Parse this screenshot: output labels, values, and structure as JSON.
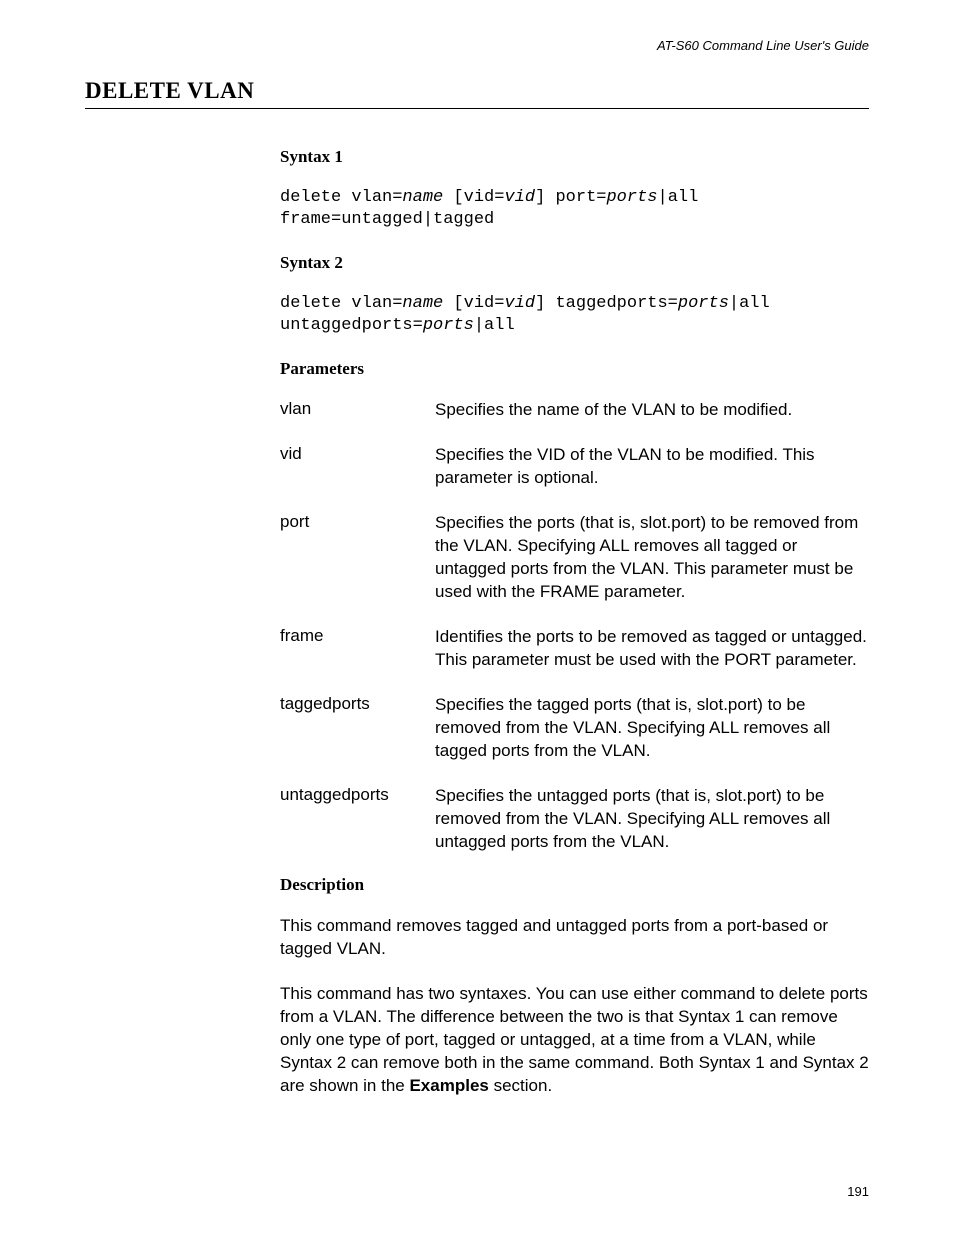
{
  "header": {
    "guide_title": "AT-S60 Command Line User's Guide"
  },
  "title": "DELETE VLAN",
  "syntax1": {
    "heading": "Syntax 1",
    "line1_a": "delete vlan=",
    "line1_b": "name",
    "line1_c": " [vid=",
    "line1_d": "vid",
    "line1_e": "] port=",
    "line1_f": "ports",
    "line1_g": "|all",
    "line2": "frame=untagged|tagged"
  },
  "syntax2": {
    "heading": "Syntax 2",
    "line1_a": "delete vlan=",
    "line1_b": "name",
    "line1_c": " [vid=",
    "line1_d": "vid",
    "line1_e": "] taggedports=",
    "line1_f": "ports",
    "line1_g": "|all",
    "line2_a": "untaggedports=",
    "line2_b": "ports",
    "line2_c": "|all"
  },
  "parameters": {
    "heading": "Parameters",
    "rows": [
      {
        "name": "vlan",
        "desc": "Specifies the name of the VLAN to be modified."
      },
      {
        "name": "vid",
        "desc": "Specifies the VID of the VLAN to be modified. This parameter is optional."
      },
      {
        "name": "port",
        "desc": "Specifies the ports (that is, slot.port) to be removed from the VLAN. Specifying ALL removes all tagged or untagged ports from the VLAN. This parameter must be used with the FRAME parameter."
      },
      {
        "name": "frame",
        "desc": "Identifies the ports to be removed as tagged or untagged. This parameter must be used with the PORT parameter."
      },
      {
        "name": "taggedports",
        "desc": "Specifies the tagged ports (that is, slot.port) to be removed from the VLAN. Specifying ALL removes all tagged ports from the VLAN."
      },
      {
        "name": "untaggedports",
        "desc": "Specifies the untagged ports (that is, slot.port) to be removed from the VLAN. Specifying ALL removes all untagged ports from the VLAN."
      }
    ]
  },
  "description": {
    "heading": "Description",
    "para1": "This command removes tagged and untagged ports from a port-based or tagged VLAN.",
    "para2_a": "This command has two syntaxes. You can use either command to delete ports from a VLAN. The difference between the two is that Syntax 1 can remove only one type of port, tagged or untagged, at a time from a VLAN, while Syntax 2 can remove both in the same command. Both Syntax 1 and Syntax 2 are shown in the ",
    "para2_bold": "Examples",
    "para2_b": " section."
  },
  "page_number": "191"
}
